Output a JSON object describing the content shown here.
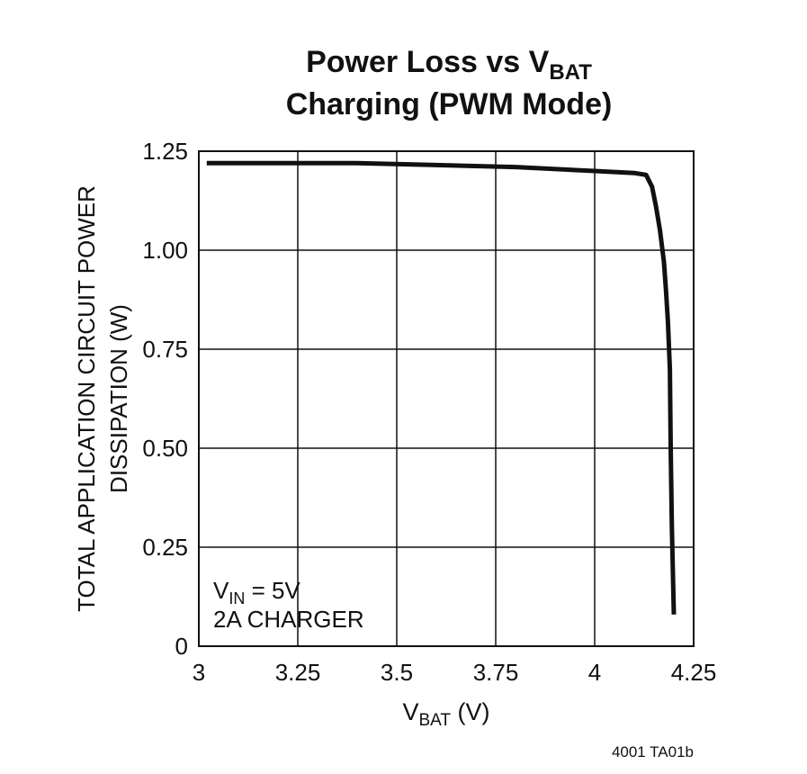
{
  "chart_data": {
    "type": "line",
    "title_line1_main": "Power Loss vs V",
    "title_line1_sub": "BAT",
    "title_line2": "Charging (PWM Mode)",
    "xlabel_main": "V",
    "xlabel_sub": "BAT",
    "xlabel_unit": " (V)",
    "ylabel_line1": "TOTAL APPLICATION CIRCUIT POWER",
    "ylabel_line2": "DISSIPATION (W)",
    "xlim": [
      3,
      4.25
    ],
    "ylim": [
      0,
      1.25
    ],
    "x_ticks": [
      3,
      3.25,
      3.5,
      3.75,
      4,
      4.25
    ],
    "x_tick_labels": [
      "3",
      "3.25",
      "3.5",
      "3.75",
      "4",
      "4.25"
    ],
    "y_ticks": [
      0,
      0.25,
      0.5,
      0.75,
      1.0,
      1.25
    ],
    "y_tick_labels": [
      "0",
      "0.25",
      "0.50",
      "0.75",
      "1.00",
      "1.25"
    ],
    "grid": true,
    "annotation_line1_main": "V",
    "annotation_line1_sub": "IN",
    "annotation_line1_rest": " = 5V",
    "annotation_line2": "2A CHARGER",
    "figure_id": "4001 TA01b",
    "series": [
      {
        "name": "Power Loss",
        "x": [
          3.02,
          3.2,
          3.4,
          3.6,
          3.8,
          4.0,
          4.1,
          4.13,
          4.145,
          4.155,
          4.165,
          4.175,
          4.18,
          4.185,
          4.19,
          4.192,
          4.195,
          4.2
        ],
        "y": [
          1.22,
          1.22,
          1.22,
          1.215,
          1.21,
          1.2,
          1.195,
          1.19,
          1.16,
          1.11,
          1.05,
          0.97,
          0.9,
          0.82,
          0.7,
          0.5,
          0.3,
          0.08
        ]
      }
    ]
  }
}
